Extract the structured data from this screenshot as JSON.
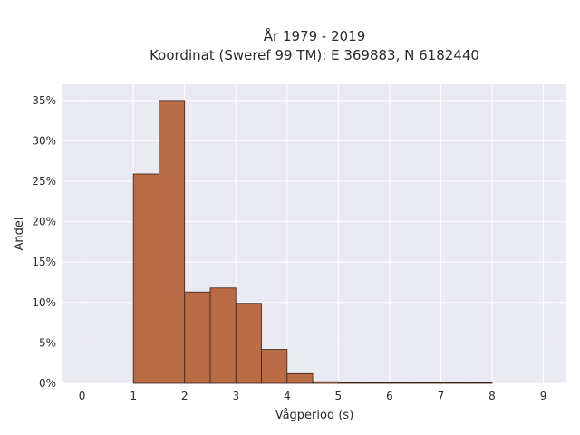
{
  "chart_data": {
    "type": "bar",
    "title_lines": [
      "År 1979 - 2019",
      "Koordinat (Sweref 99 TM): E 369883, N 6182440"
    ],
    "xlabel": "Vågperiod (s)",
    "ylabel": "Andel",
    "xlim": [
      -0.4,
      9.45
    ],
    "ylim": [
      0,
      0.37
    ],
    "x_ticks": [
      0,
      1,
      2,
      3,
      4,
      5,
      6,
      7,
      8,
      9
    ],
    "x_tick_labels": [
      "0",
      "1",
      "2",
      "3",
      "4",
      "5",
      "6",
      "7",
      "8",
      "9"
    ],
    "y_ticks": [
      0,
      0.05,
      0.1,
      0.15,
      0.2,
      0.25,
      0.3,
      0.35
    ],
    "y_tick_labels": [
      "0%",
      "5%",
      "10%",
      "15%",
      "20%",
      "25%",
      "30%",
      "35%"
    ],
    "grid": true,
    "bin_width": 0.5,
    "bins": [
      {
        "start": 1.0,
        "end": 1.5,
        "value": 0.259
      },
      {
        "start": 1.5,
        "end": 2.0,
        "value": 0.35
      },
      {
        "start": 2.0,
        "end": 2.5,
        "value": 0.113
      },
      {
        "start": 2.5,
        "end": 3.0,
        "value": 0.118
      },
      {
        "start": 3.0,
        "end": 3.5,
        "value": 0.099
      },
      {
        "start": 3.5,
        "end": 4.0,
        "value": 0.042
      },
      {
        "start": 4.0,
        "end": 4.5,
        "value": 0.012
      },
      {
        "start": 4.5,
        "end": 5.0,
        "value": 0.002
      },
      {
        "start": 5.0,
        "end": 5.5,
        "value": 0.0005
      },
      {
        "start": 5.5,
        "end": 6.0,
        "value": 0.0003
      },
      {
        "start": 6.0,
        "end": 6.5,
        "value": 0.0002
      },
      {
        "start": 6.5,
        "end": 7.0,
        "value": 0.0002
      },
      {
        "start": 7.0,
        "end": 7.5,
        "value": 0.0002
      },
      {
        "start": 7.5,
        "end": 8.0,
        "value": 0.0002
      }
    ],
    "colors": {
      "bar_fill": "#b86b45",
      "bar_edge": "#3a2418",
      "plot_background": "#eaeaf2",
      "grid": "#ffffff"
    }
  }
}
